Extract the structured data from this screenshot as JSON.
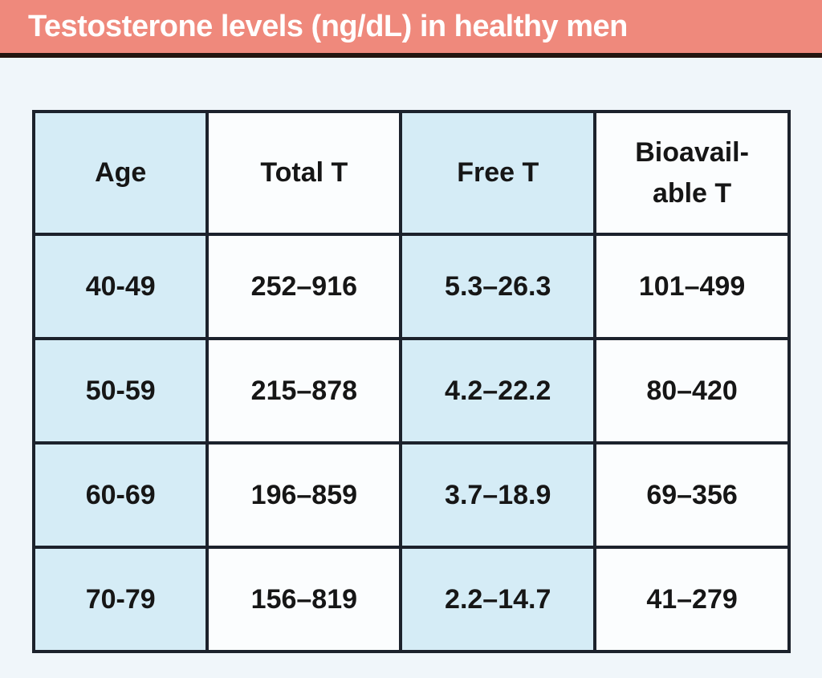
{
  "page_title": "Testosterone levels (ng/dL) in healthy men",
  "colors": {
    "header_bg": "#ef897c",
    "header_text": "#ffffff",
    "header_underline": "#241510",
    "page_bg": "#f0f6fa",
    "cell_blue": "#d5ecf6",
    "cell_white": "#fbfdfe",
    "table_border": "#1c222c",
    "cell_text": "#161616"
  },
  "chart_data": {
    "type": "table",
    "title": "Testosterone levels (ng/dL) in healthy men",
    "units": "ng/dL",
    "columns": [
      "Age",
      "Total T",
      "Free T",
      "Bioavailable T"
    ],
    "columns_display": [
      "Age",
      "Total T",
      "Free T",
      "Bioavail-\nable T"
    ],
    "rows": [
      [
        "40-49",
        "252–916",
        "5.3–26.3",
        "101–499"
      ],
      [
        "50-59",
        "215–878",
        "4.2–22.2",
        "80–420"
      ],
      [
        "60-69",
        "196–859",
        "3.7–18.9",
        "69–356"
      ],
      [
        "70-79",
        "156–819",
        "2.2–14.7",
        "41–279"
      ]
    ],
    "ranges_numeric": {
      "total_t": [
        [
          252,
          916
        ],
        [
          215,
          878
        ],
        [
          196,
          859
        ],
        [
          156,
          819
        ]
      ],
      "free_t": [
        [
          5.3,
          26.3
        ],
        [
          4.2,
          22.2
        ],
        [
          3.7,
          18.9
        ],
        [
          2.2,
          14.7
        ]
      ],
      "bioavailable_t": [
        [
          101,
          499
        ],
        [
          80,
          420
        ],
        [
          69,
          356
        ],
        [
          41,
          279
        ]
      ]
    }
  }
}
